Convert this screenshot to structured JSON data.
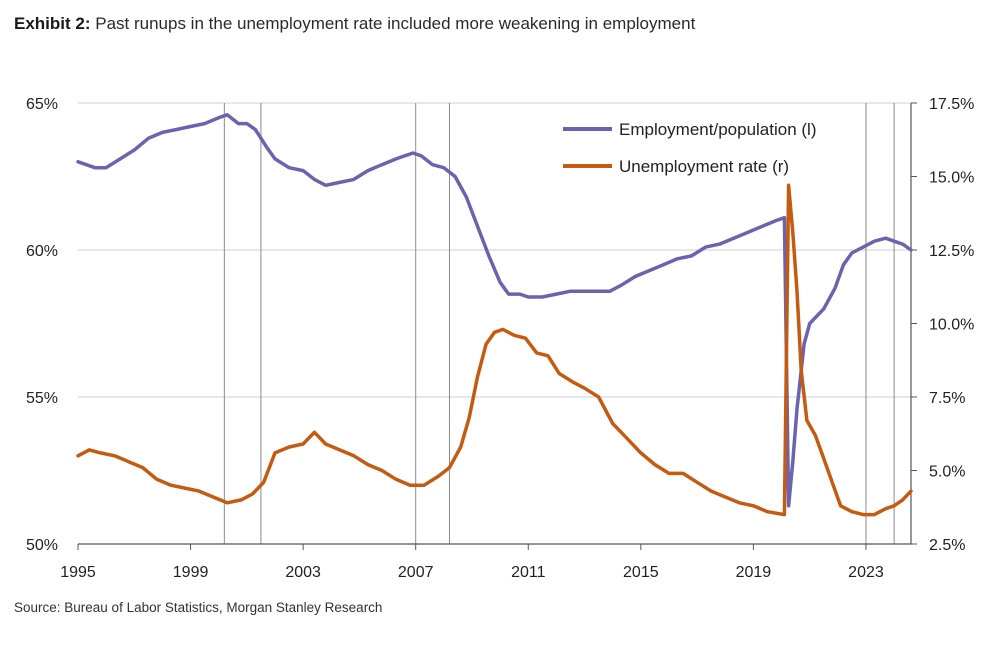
{
  "header": {
    "exhibit_label": "Exhibit 2:",
    "title_text": " Past runups in the unemployment rate included more weakening in employment"
  },
  "footer": {
    "source": "Source: Bureau of Labor Statistics, Morgan Stanley Research"
  },
  "colors": {
    "employment": "#6b63ad",
    "unemployment": "#c55a11",
    "gridline": "#cfcfcf",
    "recession_line": "#8a8a8a",
    "axis": "#555555"
  },
  "chart_data": {
    "type": "line",
    "title": "Past runups in the unemployment rate included more weakening in employment",
    "x_ticks": [
      "1995",
      "1999",
      "2003",
      "2007",
      "2011",
      "2015",
      "2019",
      "2023"
    ],
    "xlim": [
      1995,
      2024.6
    ],
    "y_left": {
      "lim": [
        50,
        65
      ],
      "ticks": [
        "50%",
        "55%",
        "60%",
        "65%"
      ]
    },
    "y_right": {
      "lim": [
        2.5,
        17.5
      ],
      "ticks": [
        "2.5%",
        "5.0%",
        "7.5%",
        "10.0%",
        "12.5%",
        "15.0%",
        "17.5%"
      ]
    },
    "grid": "horizontal",
    "legend_position": "top-right",
    "vertical_lines_years": [
      2000.2,
      2001.5,
      2007.0,
      2008.2,
      2023.0,
      2024.0
    ],
    "series": [
      {
        "name": "Employment/population (l)",
        "axis": "left",
        "points": [
          [
            1995.0,
            63.0
          ],
          [
            1995.3,
            62.9
          ],
          [
            1995.6,
            62.8
          ],
          [
            1996.0,
            62.8
          ],
          [
            1996.5,
            63.1
          ],
          [
            1997.0,
            63.4
          ],
          [
            1997.5,
            63.8
          ],
          [
            1998.0,
            64.0
          ],
          [
            1998.5,
            64.1
          ],
          [
            1999.0,
            64.2
          ],
          [
            1999.5,
            64.3
          ],
          [
            2000.0,
            64.5
          ],
          [
            2000.3,
            64.6
          ],
          [
            2000.7,
            64.3
          ],
          [
            2001.0,
            64.3
          ],
          [
            2001.3,
            64.1
          ],
          [
            2001.7,
            63.5
          ],
          [
            2002.0,
            63.1
          ],
          [
            2002.5,
            62.8
          ],
          [
            2003.0,
            62.7
          ],
          [
            2003.4,
            62.4
          ],
          [
            2003.8,
            62.2
          ],
          [
            2004.3,
            62.3
          ],
          [
            2004.8,
            62.4
          ],
          [
            2005.3,
            62.7
          ],
          [
            2005.8,
            62.9
          ],
          [
            2006.3,
            63.1
          ],
          [
            2006.9,
            63.3
          ],
          [
            2007.2,
            63.2
          ],
          [
            2007.6,
            62.9
          ],
          [
            2008.0,
            62.8
          ],
          [
            2008.4,
            62.5
          ],
          [
            2008.8,
            61.8
          ],
          [
            2009.2,
            60.8
          ],
          [
            2009.6,
            59.8
          ],
          [
            2010.0,
            58.9
          ],
          [
            2010.3,
            58.5
          ],
          [
            2010.7,
            58.5
          ],
          [
            2011.0,
            58.4
          ],
          [
            2011.5,
            58.4
          ],
          [
            2012.0,
            58.5
          ],
          [
            2012.5,
            58.6
          ],
          [
            2013.0,
            58.6
          ],
          [
            2013.5,
            58.6
          ],
          [
            2013.9,
            58.6
          ],
          [
            2014.3,
            58.8
          ],
          [
            2014.8,
            59.1
          ],
          [
            2015.3,
            59.3
          ],
          [
            2015.8,
            59.5
          ],
          [
            2016.3,
            59.7
          ],
          [
            2016.8,
            59.8
          ],
          [
            2017.3,
            60.1
          ],
          [
            2017.8,
            60.2
          ],
          [
            2018.3,
            60.4
          ],
          [
            2018.8,
            60.6
          ],
          [
            2019.3,
            60.8
          ],
          [
            2019.8,
            61.0
          ],
          [
            2020.1,
            61.1
          ],
          [
            2020.25,
            51.3
          ],
          [
            2020.4,
            52.8
          ],
          [
            2020.55,
            54.6
          ],
          [
            2020.8,
            56.8
          ],
          [
            2021.0,
            57.5
          ],
          [
            2021.5,
            58.0
          ],
          [
            2021.9,
            58.7
          ],
          [
            2022.2,
            59.5
          ],
          [
            2022.5,
            59.9
          ],
          [
            2022.9,
            60.1
          ],
          [
            2023.3,
            60.3
          ],
          [
            2023.7,
            60.4
          ],
          [
            2024.0,
            60.3
          ],
          [
            2024.3,
            60.2
          ],
          [
            2024.6,
            60.0
          ]
        ]
      },
      {
        "name": "Unemployment rate (r)",
        "axis": "right",
        "points": [
          [
            1995.0,
            5.5
          ],
          [
            1995.4,
            5.7
          ],
          [
            1995.8,
            5.6
          ],
          [
            1996.3,
            5.5
          ],
          [
            1996.8,
            5.3
          ],
          [
            1997.3,
            5.1
          ],
          [
            1997.8,
            4.7
          ],
          [
            1998.3,
            4.5
          ],
          [
            1998.8,
            4.4
          ],
          [
            1999.3,
            4.3
          ],
          [
            1999.8,
            4.1
          ],
          [
            2000.3,
            3.9
          ],
          [
            2000.8,
            4.0
          ],
          [
            2001.2,
            4.2
          ],
          [
            2001.6,
            4.6
          ],
          [
            2002.0,
            5.6
          ],
          [
            2002.5,
            5.8
          ],
          [
            2003.0,
            5.9
          ],
          [
            2003.4,
            6.3
          ],
          [
            2003.8,
            5.9
          ],
          [
            2004.3,
            5.7
          ],
          [
            2004.8,
            5.5
          ],
          [
            2005.3,
            5.2
          ],
          [
            2005.8,
            5.0
          ],
          [
            2006.3,
            4.7
          ],
          [
            2006.8,
            4.5
          ],
          [
            2007.3,
            4.5
          ],
          [
            2007.8,
            4.8
          ],
          [
            2008.2,
            5.1
          ],
          [
            2008.6,
            5.8
          ],
          [
            2008.9,
            6.8
          ],
          [
            2009.2,
            8.2
          ],
          [
            2009.5,
            9.3
          ],
          [
            2009.8,
            9.7
          ],
          [
            2010.1,
            9.8
          ],
          [
            2010.5,
            9.6
          ],
          [
            2010.9,
            9.5
          ],
          [
            2011.3,
            9.0
          ],
          [
            2011.7,
            8.9
          ],
          [
            2012.1,
            8.3
          ],
          [
            2012.6,
            8.0
          ],
          [
            2013.0,
            7.8
          ],
          [
            2013.5,
            7.5
          ],
          [
            2014.0,
            6.6
          ],
          [
            2014.5,
            6.1
          ],
          [
            2015.0,
            5.6
          ],
          [
            2015.5,
            5.2
          ],
          [
            2016.0,
            4.9
          ],
          [
            2016.5,
            4.9
          ],
          [
            2017.0,
            4.6
          ],
          [
            2017.5,
            4.3
          ],
          [
            2018.0,
            4.1
          ],
          [
            2018.5,
            3.9
          ],
          [
            2019.0,
            3.8
          ],
          [
            2019.5,
            3.6
          ],
          [
            2020.1,
            3.5
          ],
          [
            2020.25,
            14.7
          ],
          [
            2020.4,
            13.1
          ],
          [
            2020.55,
            11.1
          ],
          [
            2020.7,
            8.4
          ],
          [
            2020.9,
            6.7
          ],
          [
            2021.2,
            6.2
          ],
          [
            2021.5,
            5.4
          ],
          [
            2021.8,
            4.6
          ],
          [
            2022.1,
            3.8
          ],
          [
            2022.5,
            3.6
          ],
          [
            2022.9,
            3.5
          ],
          [
            2023.3,
            3.5
          ],
          [
            2023.7,
            3.7
          ],
          [
            2024.0,
            3.8
          ],
          [
            2024.3,
            4.0
          ],
          [
            2024.6,
            4.3
          ]
        ]
      }
    ]
  }
}
